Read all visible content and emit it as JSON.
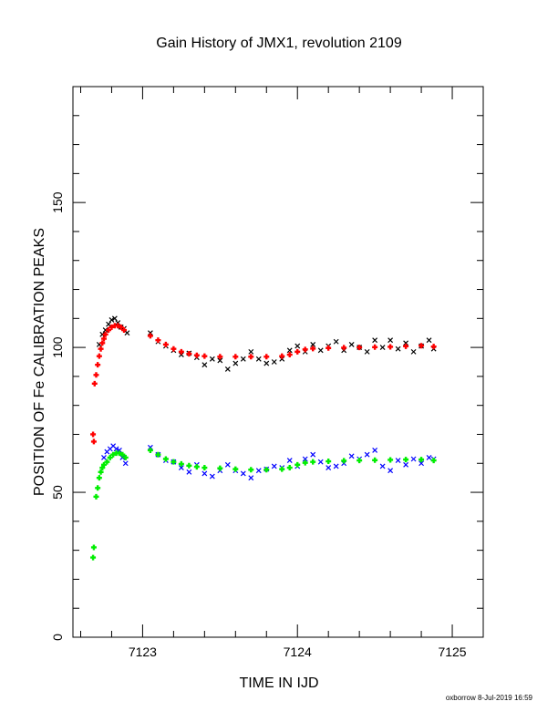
{
  "chart_data": {
    "type": "scatter",
    "title": "Gain History of JMX1, revolution 2109",
    "xlabel": "TIME IN IJD",
    "ylabel": "POSITION OF Fe CALIBRATION PEAKS",
    "footer": "oxborrow  8-Jul-2019 16:59",
    "xlim": [
      7122.55,
      7125.2
    ],
    "ylim": [
      0,
      190
    ],
    "x_ticks": [
      7123,
      7124,
      7125
    ],
    "x_tick_labels": [
      "7123",
      "7124",
      "7125"
    ],
    "y_ticks": [
      0,
      50,
      100,
      150
    ],
    "y_tick_labels": [
      "0",
      "50",
      "100",
      "150"
    ],
    "grid": false,
    "colors": {
      "upper_raw": "#000000",
      "upper_fit": "#ff0000",
      "lower_raw": "#0000ff",
      "lower_fit": "#00ee00"
    },
    "series": [
      {
        "marker": "x",
        "color": "#000000",
        "points": [
          [
            7122.72,
            101.0
          ],
          [
            7122.74,
            104.5
          ],
          [
            7122.76,
            106.0
          ],
          [
            7122.78,
            108.0
          ],
          [
            7122.8,
            109.5
          ],
          [
            7122.82,
            110.0
          ],
          [
            7122.84,
            108.5
          ],
          [
            7122.86,
            107.0
          ],
          [
            7122.88,
            106.5
          ],
          [
            7122.9,
            105.0
          ],
          [
            7123.05,
            105.0
          ],
          [
            7123.1,
            102.0
          ],
          [
            7123.15,
            100.5
          ],
          [
            7123.2,
            99.0
          ],
          [
            7123.25,
            97.5
          ],
          [
            7123.3,
            98.0
          ],
          [
            7123.35,
            96.5
          ],
          [
            7123.4,
            94.0
          ],
          [
            7123.45,
            96.0
          ],
          [
            7123.5,
            95.5
          ],
          [
            7123.55,
            92.5
          ],
          [
            7123.6,
            94.5
          ],
          [
            7123.65,
            96.0
          ],
          [
            7123.7,
            98.5
          ],
          [
            7123.75,
            96.0
          ],
          [
            7123.8,
            94.5
          ],
          [
            7123.85,
            95.0
          ],
          [
            7123.9,
            96.0
          ],
          [
            7123.95,
            99.0
          ],
          [
            7124.0,
            100.5
          ],
          [
            7124.05,
            98.5
          ],
          [
            7124.1,
            101.0
          ],
          [
            7124.15,
            99.0
          ],
          [
            7124.2,
            100.5
          ],
          [
            7124.25,
            102.0
          ],
          [
            7124.3,
            99.0
          ],
          [
            7124.35,
            101.0
          ],
          [
            7124.4,
            100.0
          ],
          [
            7124.45,
            98.5
          ],
          [
            7124.5,
            102.5
          ],
          [
            7124.55,
            100.0
          ],
          [
            7124.6,
            102.5
          ],
          [
            7124.65,
            99.5
          ],
          [
            7124.7,
            101.5
          ],
          [
            7124.75,
            98.5
          ],
          [
            7124.8,
            100.5
          ],
          [
            7124.85,
            102.5
          ],
          [
            7124.88,
            99.5
          ]
        ]
      },
      {
        "marker": "+",
        "color": "#ff0000",
        "points": [
          [
            7122.68,
            70.0
          ],
          [
            7122.685,
            67.5
          ],
          [
            7122.69,
            87.5
          ],
          [
            7122.7,
            90.5
          ],
          [
            7122.71,
            94.0
          ],
          [
            7122.72,
            97.0
          ],
          [
            7122.73,
            99.5
          ],
          [
            7122.74,
            101.5
          ],
          [
            7122.75,
            103.0
          ],
          [
            7122.76,
            104.5
          ],
          [
            7122.78,
            106.0
          ],
          [
            7122.8,
            107.0
          ],
          [
            7122.82,
            107.5
          ],
          [
            7122.84,
            107.5
          ],
          [
            7122.86,
            107.0
          ],
          [
            7122.88,
            106.0
          ],
          [
            7123.05,
            104.0
          ],
          [
            7123.1,
            102.5
          ],
          [
            7123.15,
            101.0
          ],
          [
            7123.2,
            99.5
          ],
          [
            7123.25,
            98.5
          ],
          [
            7123.3,
            97.8
          ],
          [
            7123.35,
            97.3
          ],
          [
            7123.4,
            97.0
          ],
          [
            7123.5,
            96.8
          ],
          [
            7123.6,
            96.8
          ],
          [
            7123.7,
            96.8
          ],
          [
            7123.8,
            96.8
          ],
          [
            7123.9,
            97.0
          ],
          [
            7123.95,
            97.5
          ],
          [
            7124.0,
            98.5
          ],
          [
            7124.05,
            99.3
          ],
          [
            7124.1,
            99.6
          ],
          [
            7124.2,
            99.8
          ],
          [
            7124.3,
            99.9
          ],
          [
            7124.4,
            100.0
          ],
          [
            7124.5,
            100.1
          ],
          [
            7124.6,
            100.2
          ],
          [
            7124.7,
            100.4
          ],
          [
            7124.8,
            100.6
          ],
          [
            7124.88,
            100.3
          ]
        ]
      },
      {
        "marker": "x",
        "color": "#0000ff",
        "points": [
          [
            7122.75,
            62.0
          ],
          [
            7122.77,
            64.0
          ],
          [
            7122.79,
            65.0
          ],
          [
            7122.81,
            66.0
          ],
          [
            7122.83,
            65.0
          ],
          [
            7122.85,
            64.5
          ],
          [
            7122.87,
            62.0
          ],
          [
            7122.89,
            60.0
          ],
          [
            7123.05,
            65.5
          ],
          [
            7123.1,
            63.0
          ],
          [
            7123.15,
            61.0
          ],
          [
            7123.2,
            60.5
          ],
          [
            7123.25,
            58.5
          ],
          [
            7123.3,
            57.0
          ],
          [
            7123.35,
            59.5
          ],
          [
            7123.4,
            56.5
          ],
          [
            7123.45,
            55.5
          ],
          [
            7123.5,
            57.5
          ],
          [
            7123.55,
            59.5
          ],
          [
            7123.6,
            57.5
          ],
          [
            7123.65,
            56.5
          ],
          [
            7123.7,
            55.0
          ],
          [
            7123.75,
            57.5
          ],
          [
            7123.8,
            58.0
          ],
          [
            7123.85,
            59.0
          ],
          [
            7123.9,
            58.5
          ],
          [
            7123.95,
            61.0
          ],
          [
            7124.0,
            59.0
          ],
          [
            7124.05,
            61.5
          ],
          [
            7124.1,
            63.0
          ],
          [
            7124.15,
            60.5
          ],
          [
            7124.2,
            58.5
          ],
          [
            7124.25,
            59.0
          ],
          [
            7124.3,
            60.0
          ],
          [
            7124.35,
            62.5
          ],
          [
            7124.4,
            61.5
          ],
          [
            7124.45,
            63.0
          ],
          [
            7124.5,
            64.5
          ],
          [
            7124.55,
            59.0
          ],
          [
            7124.6,
            57.5
          ],
          [
            7124.65,
            61.0
          ],
          [
            7124.7,
            59.5
          ],
          [
            7124.75,
            61.5
          ],
          [
            7124.8,
            60.0
          ],
          [
            7124.85,
            62.0
          ],
          [
            7124.88,
            61.5
          ]
        ]
      },
      {
        "marker": "+",
        "color": "#00ee00",
        "points": [
          [
            7122.68,
            27.5
          ],
          [
            7122.685,
            31.0
          ],
          [
            7122.7,
            48.5
          ],
          [
            7122.71,
            51.5
          ],
          [
            7122.72,
            55.0
          ],
          [
            7122.73,
            57.0
          ],
          [
            7122.74,
            58.5
          ],
          [
            7122.75,
            59.5
          ],
          [
            7122.77,
            60.5
          ],
          [
            7122.79,
            62.0
          ],
          [
            7122.81,
            63.0
          ],
          [
            7122.83,
            63.5
          ],
          [
            7122.85,
            63.5
          ],
          [
            7122.87,
            63.0
          ],
          [
            7122.89,
            62.0
          ],
          [
            7123.05,
            64.5
          ],
          [
            7123.1,
            63.0
          ],
          [
            7123.15,
            61.5
          ],
          [
            7123.2,
            60.5
          ],
          [
            7123.25,
            59.8
          ],
          [
            7123.3,
            59.2
          ],
          [
            7123.35,
            58.8
          ],
          [
            7123.4,
            58.5
          ],
          [
            7123.5,
            58.3
          ],
          [
            7123.6,
            58.0
          ],
          [
            7123.7,
            57.8
          ],
          [
            7123.8,
            57.8
          ],
          [
            7123.9,
            58.0
          ],
          [
            7123.95,
            58.5
          ],
          [
            7124.0,
            59.5
          ],
          [
            7124.05,
            60.2
          ],
          [
            7124.1,
            60.5
          ],
          [
            7124.2,
            60.7
          ],
          [
            7124.3,
            60.9
          ],
          [
            7124.4,
            61.0
          ],
          [
            7124.5,
            61.1
          ],
          [
            7124.6,
            61.2
          ],
          [
            7124.7,
            61.3
          ],
          [
            7124.8,
            61.3
          ],
          [
            7124.88,
            61.0
          ]
        ]
      }
    ]
  }
}
